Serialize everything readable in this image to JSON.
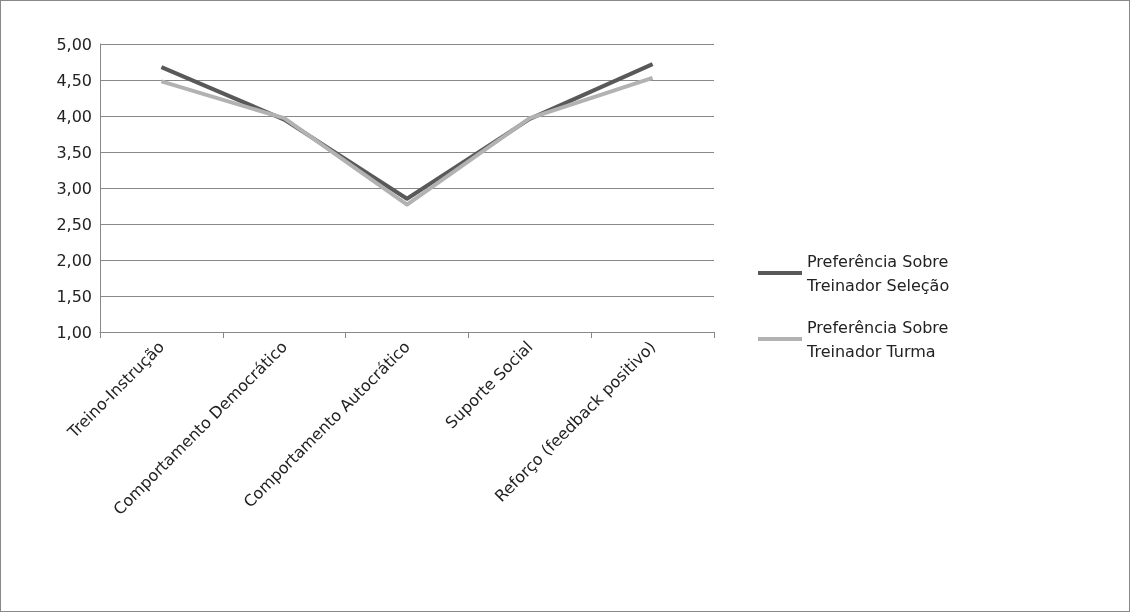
{
  "chart_data": {
    "type": "line",
    "categories": [
      "Treino-Instrução",
      "Comportamento Democrático",
      "Comportamento Autocrático",
      "Suporte Social",
      "Reforço (feedback positivo)"
    ],
    "series": [
      {
        "name": "Preferência Sobre Treinador Seleção",
        "color": "#595959",
        "values": [
          4.68,
          3.95,
          2.85,
          3.96,
          4.72
        ]
      },
      {
        "name": "Preferência Sobre Treinador Turma",
        "color": "#b2b2b2",
        "values": [
          4.48,
          3.97,
          2.77,
          3.97,
          4.53
        ]
      }
    ],
    "ylim": [
      1,
      5
    ],
    "yticks": [
      {
        "value": 1,
        "label": "1,00"
      },
      {
        "value": 1.5,
        "label": "1,50"
      },
      {
        "value": 2,
        "label": "2,00"
      },
      {
        "value": 2.5,
        "label": "2,50"
      },
      {
        "value": 3,
        "label": "3,00"
      },
      {
        "value": 3.5,
        "label": "3,50"
      },
      {
        "value": 4,
        "label": "4,00"
      },
      {
        "value": 4.5,
        "label": "4,50"
      },
      {
        "value": 5,
        "label": "5,00"
      }
    ],
    "grid": "y",
    "legend": "right",
    "marker": "none",
    "line_style": "solid"
  }
}
